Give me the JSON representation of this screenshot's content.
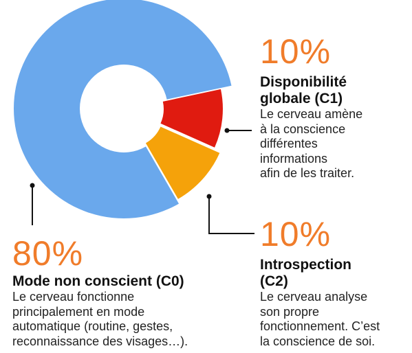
{
  "chart_data": {
    "type": "pie",
    "variant": "donut",
    "categories": [
      "Mode non conscient (C0)",
      "Disponibilité globale (C1)",
      "Introspection (C2)"
    ],
    "values": [
      80,
      10,
      10
    ],
    "unit": "%",
    "colors": [
      "#6aa8ec",
      "#e01b10",
      "#f5a20a"
    ],
    "grid": false,
    "legend": "none",
    "slices": [
      {
        "key": "c0",
        "percent_label": "80%",
        "title": "Mode non conscient (C0)",
        "description_lines": [
          "Le cerveau fonctionne",
          "principalement en mode",
          "automatique (routine, gestes,",
          "reconnaissance des visages…)."
        ]
      },
      {
        "key": "c1",
        "percent_label": "10%",
        "title_lines": [
          "Disponibilité",
          "globale (C1)"
        ],
        "description_lines": [
          "Le cerveau amène",
          "à la conscience",
          "différentes",
          "informations",
          "afin de les traiter."
        ]
      },
      {
        "key": "c2",
        "percent_label": "10%",
        "title_lines": [
          "Introspection",
          "(C2)"
        ],
        "description_lines": [
          "Le cerveau analyse",
          "son propre",
          "fonctionnement. C’est",
          "la conscience de soi."
        ]
      }
    ]
  },
  "style": {
    "percent_color": "#f07c2a",
    "leader_color": "#111111"
  }
}
